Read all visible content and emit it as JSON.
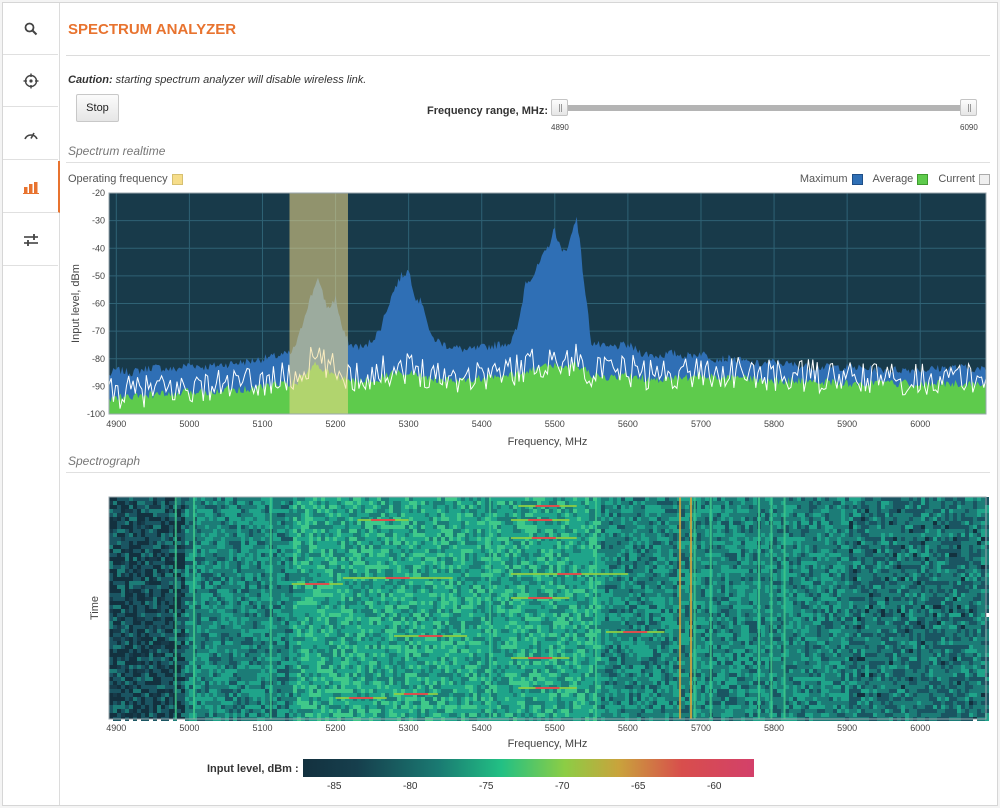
{
  "sidebar": {
    "items": [
      {
        "name": "search",
        "icon": "search-icon"
      },
      {
        "name": "antenna-alignment",
        "icon": "crosshair-icon"
      },
      {
        "name": "speed-test",
        "icon": "gauge-icon"
      },
      {
        "name": "spectrum-analyzer",
        "icon": "bar-chart-icon",
        "active": true
      },
      {
        "name": "settings",
        "icon": "sliders-icon"
      }
    ]
  },
  "header": {
    "title": "SPECTRUM ANALYZER"
  },
  "caution": {
    "label": "Caution:",
    "text": " starting spectrum analyzer will disable wireless link."
  },
  "controls": {
    "stop_label": "Stop",
    "range_label": "Frequency range, MHz:",
    "range_min": "4890",
    "range_max": "6090"
  },
  "realtime": {
    "section_title": "Spectrum realtime",
    "legend_operating": "Operating frequency",
    "legend_maximum": "Maximum",
    "legend_average": "Average",
    "legend_current": "Current"
  },
  "spectrograph": {
    "section_title": "Spectrograph",
    "y_label": "Time",
    "x_label": "Frequency, MHz"
  },
  "colorbar": {
    "label": "Input level, dBm :",
    "ticks": [
      "-85",
      "-80",
      "-75",
      "-70",
      "-65",
      "-60"
    ]
  },
  "colors": {
    "accent": "#e8732f",
    "plot_bg": "#183a4a",
    "maximum": "#2f6fb5",
    "average": "#5ecb4c",
    "current": "#ffffff",
    "operating": "#f6dd8a"
  },
  "chart_data": [
    {
      "type": "area",
      "title": "Spectrum realtime",
      "xlabel": "Frequency, MHz",
      "ylabel": "Input level, dBm",
      "xlim": [
        4890,
        6090
      ],
      "ylim": [
        -100,
        -20
      ],
      "x_ticks": [
        "4900",
        "5000",
        "5100",
        "5200",
        "5300",
        "5400",
        "5500",
        "5600",
        "5700",
        "5800",
        "5900",
        "6000"
      ],
      "y_ticks": [
        "-20",
        "-30",
        "-40",
        "-50",
        "-60",
        "-70",
        "-80",
        "-90",
        "-100"
      ],
      "operating_band": [
        5137,
        5217
      ],
      "grid": true,
      "legend": "top-right",
      "x": [
        4890,
        4900,
        4920,
        4950,
        4980,
        5000,
        5020,
        5050,
        5080,
        5100,
        5120,
        5140,
        5150,
        5160,
        5170,
        5175,
        5180,
        5190,
        5200,
        5210,
        5220,
        5240,
        5260,
        5270,
        5280,
        5290,
        5300,
        5310,
        5320,
        5330,
        5350,
        5380,
        5400,
        5420,
        5440,
        5450,
        5460,
        5470,
        5480,
        5490,
        5500,
        5510,
        5520,
        5530,
        5540,
        5550,
        5570,
        5600,
        5620,
        5640,
        5660,
        5680,
        5700,
        5720,
        5740,
        5760,
        5780,
        5800,
        5820,
        5850,
        5900,
        5950,
        6000,
        6050,
        6090
      ],
      "series": [
        {
          "name": "Maximum",
          "values": [
            -86,
            -84,
            -85,
            -83,
            -84,
            -82,
            -83,
            -82,
            -81,
            -80,
            -79,
            -78,
            -72,
            -62,
            -55,
            -50,
            -55,
            -62,
            -58,
            -70,
            -75,
            -76,
            -70,
            -62,
            -55,
            -50,
            -48,
            -58,
            -60,
            -72,
            -75,
            -77,
            -76,
            -75,
            -74,
            -68,
            -52,
            -50,
            -45,
            -40,
            -33,
            -42,
            -38,
            -28,
            -52,
            -74,
            -76,
            -75,
            -78,
            -79,
            -78,
            -79,
            -78,
            -80,
            -80,
            -81,
            -82,
            -81,
            -82,
            -83,
            -83,
            -84,
            -84,
            -83,
            -84
          ]
        },
        {
          "name": "Average",
          "values": [
            -95,
            -94,
            -94,
            -93,
            -93,
            -92,
            -92,
            -91,
            -91,
            -90,
            -89,
            -89,
            -88,
            -85,
            -82,
            -82,
            -83,
            -85,
            -86,
            -87,
            -88,
            -88,
            -87,
            -86,
            -85,
            -85,
            -85,
            -86,
            -86,
            -87,
            -88,
            -88,
            -87,
            -87,
            -86,
            -85,
            -84,
            -84,
            -83,
            -83,
            -82,
            -83,
            -83,
            -82,
            -84,
            -86,
            -87,
            -86,
            -87,
            -88,
            -87,
            -87,
            -86,
            -87,
            -87,
            -87,
            -88,
            -88,
            -88,
            -88,
            -89,
            -89,
            -89,
            -89,
            -89
          ]
        }
      ]
    },
    {
      "type": "heatmap",
      "title": "Spectrograph",
      "xlabel": "Frequency, MHz",
      "ylabel": "Time",
      "xlim": [
        4890,
        6090
      ],
      "x_ticks": [
        "4900",
        "5000",
        "5100",
        "5200",
        "5300",
        "5400",
        "5500",
        "5600",
        "5700",
        "5800",
        "5900",
        "6000"
      ],
      "value_range_dbm": [
        -88,
        -58
      ]
    }
  ]
}
